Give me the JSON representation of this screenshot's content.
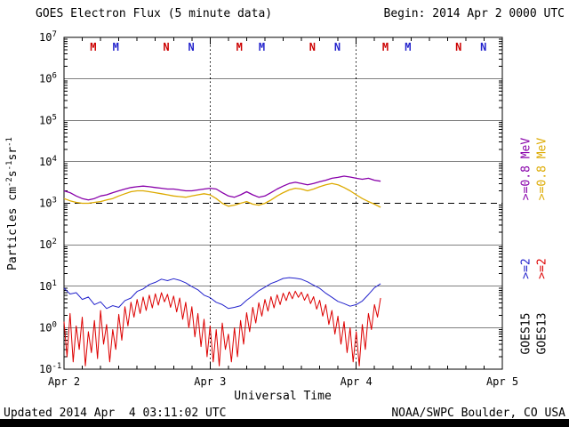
{
  "header": {
    "title": "GOES Electron Flux (5 minute data)",
    "begin": "Begin: 2014 Apr 2 0000 UTC"
  },
  "footer": {
    "updated": "Updated 2014 Apr  4 03:11:02 UTC",
    "organization": "NOAA/SWPC Boulder, CO USA"
  },
  "y_axis_label": {
    "p1": "Particles cm",
    "e1": "-2",
    "p2": "s",
    "e2": "-1",
    "p3": "sr",
    "e3": "-1"
  },
  "right_legend": {
    "columns": [
      {
        "sat": "GOES15",
        "e08": ">=0.8 MeV",
        "e2": ">=2",
        "e08_color": "#8800aa",
        "e2_color": "#2222cc"
      },
      {
        "sat": "GOES13",
        "e08": ">=0.8 MeV",
        "e2": ">=2",
        "e08_color": "#ddaa00",
        "e2_color": "#dd0000"
      }
    ]
  },
  "chart_data": {
    "type": "line",
    "title": "GOES Electron Flux (5 minute data)",
    "xlabel": "Universal Time",
    "ylabel": "Particles cm-2 s-1 sr-1",
    "y_scale": "log",
    "ylim": [
      0.1,
      10000000
    ],
    "y_log_exponents": [
      7,
      6,
      5,
      4,
      3,
      2,
      1,
      0,
      -1
    ],
    "x_range_hours": [
      0,
      72
    ],
    "x_tick_hours": [
      0,
      24,
      48,
      72
    ],
    "x_tick_labels": [
      "Apr 2",
      "Apr 3",
      "Apr 4",
      "Apr 5"
    ],
    "grid": {
      "horizontal": "solid each decade",
      "threshold_dashed_at": 1000,
      "vertical_dotted_at_hours": [
        24,
        48
      ]
    },
    "legend_position": "right-rotated",
    "threshold": 1000,
    "markers": [
      {
        "label": "M",
        "color": "#cc0000",
        "hour": 4.8
      },
      {
        "label": "M",
        "color": "#2222cc",
        "hour": 8.5
      },
      {
        "label": "N",
        "color": "#cc0000",
        "hour": 16.8
      },
      {
        "label": "N",
        "color": "#2222cc",
        "hour": 20.9
      },
      {
        "label": "M",
        "color": "#cc0000",
        "hour": 28.8
      },
      {
        "label": "M",
        "color": "#2222cc",
        "hour": 32.5
      },
      {
        "label": "N",
        "color": "#cc0000",
        "hour": 40.8
      },
      {
        "label": "N",
        "color": "#2222cc",
        "hour": 44.9
      },
      {
        "label": "M",
        "color": "#cc0000",
        "hour": 52.8
      },
      {
        "label": "M",
        "color": "#2222cc",
        "hour": 56.5
      },
      {
        "label": "N",
        "color": "#cc0000",
        "hour": 64.8
      },
      {
        "label": "N",
        "color": "#2222cc",
        "hour": 68.9
      }
    ],
    "series": [
      {
        "name": "GOES15 >=0.8 MeV",
        "color": "#8800aa",
        "width": 1.3,
        "dt_hours": 1,
        "values": [
          2000,
          1800,
          1500,
          1300,
          1200,
          1300,
          1500,
          1600,
          1800,
          2000,
          2200,
          2400,
          2500,
          2600,
          2500,
          2400,
          2300,
          2200,
          2200,
          2100,
          2000,
          2000,
          2100,
          2200,
          2300,
          2200,
          1800,
          1500,
          1400,
          1600,
          1900,
          1600,
          1400,
          1500,
          1800,
          2200,
          2600,
          3000,
          3200,
          3000,
          2800,
          3000,
          3300,
          3600,
          4000,
          4200,
          4500,
          4300,
          4000,
          3800,
          4000,
          3600,
          3400
        ]
      },
      {
        "name": "GOES13 >=0.8 MeV",
        "color": "#ddaa00",
        "width": 1.3,
        "dt_hours": 1,
        "values": [
          1300,
          1150,
          1050,
          1000,
          1000,
          1050,
          1100,
          1200,
          1300,
          1500,
          1700,
          1900,
          2000,
          2000,
          1900,
          1800,
          1700,
          1600,
          1500,
          1450,
          1400,
          1500,
          1600,
          1700,
          1600,
          1300,
          1000,
          850,
          900,
          1000,
          1100,
          950,
          900,
          1000,
          1200,
          1500,
          1800,
          2100,
          2300,
          2200,
          2000,
          2200,
          2500,
          2800,
          3000,
          2800,
          2400,
          2000,
          1600,
          1300,
          1100,
          950,
          800
        ]
      },
      {
        "name": "GOES15 >=2 MeV",
        "color": "#2222cc",
        "width": 1,
        "dt_hours": 1,
        "values": [
          9,
          6.5,
          7,
          4.8,
          5.5,
          3.6,
          4.2,
          2.9,
          3.4,
          3.1,
          4.5,
          5.2,
          7.5,
          8.6,
          11,
          12.4,
          14.8,
          13.6,
          15.2,
          13.9,
          12.1,
          9.8,
          8.2,
          6.1,
          5.3,
          4.1,
          3.6,
          2.9,
          3.1,
          3.4,
          4.6,
          5.9,
          7.8,
          9.5,
          11.6,
          13.2,
          15.4,
          16.1,
          15.6,
          14.7,
          12.8,
          10.6,
          8.9,
          6.8,
          5.4,
          4.3,
          3.8,
          3.3,
          3.6,
          4.4,
          6.3,
          9.2,
          11.5
        ]
      },
      {
        "name": "GOES13 >=2 MeV",
        "color": "#dd0000",
        "width": 1,
        "dt_hours": 0.5,
        "values": [
          1.4,
          0.2,
          2.2,
          0.15,
          1.1,
          0.3,
          1.8,
          0.12,
          0.8,
          0.25,
          1.5,
          0.18,
          2.6,
          0.4,
          1.2,
          0.15,
          0.9,
          0.3,
          2.1,
          0.5,
          3.2,
          1.1,
          4.1,
          1.8,
          4.8,
          2.2,
          5.5,
          2.6,
          6.1,
          3.0,
          6.6,
          3.5,
          7.0,
          4.2,
          6.4,
          3.1,
          5.8,
          2.4,
          5.2,
          1.6,
          4.1,
          1.0,
          3.2,
          0.6,
          2.2,
          0.35,
          1.6,
          0.2,
          1.1,
          0.15,
          0.9,
          0.12,
          1.3,
          0.3,
          0.7,
          0.15,
          1.0,
          0.2,
          1.5,
          0.4,
          2.3,
          0.8,
          3.1,
          1.3,
          4.0,
          1.9,
          4.8,
          2.5,
          5.6,
          3.0,
          6.2,
          3.6,
          6.8,
          4.5,
          7.3,
          5.0,
          7.6,
          5.4,
          7.2,
          4.6,
          6.5,
          3.8,
          5.6,
          2.8,
          4.6,
          1.9,
          3.6,
          1.2,
          2.6,
          0.7,
          1.9,
          0.4,
          1.4,
          0.25,
          1.0,
          0.15,
          0.8,
          0.12,
          1.2,
          0.3,
          2.2,
          0.9,
          3.6,
          1.8,
          5.2
        ]
      }
    ]
  }
}
